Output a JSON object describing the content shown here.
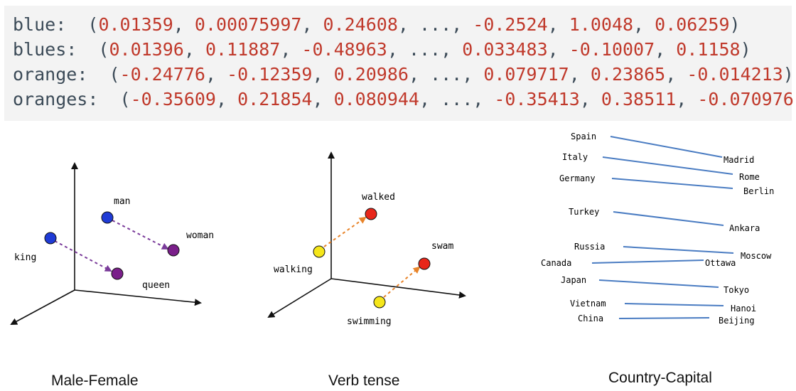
{
  "embeddings": [
    {
      "word": "blue",
      "values": [
        "0.01359",
        "0.00075997",
        "0.24608",
        "...",
        "-0.2524",
        "1.0048",
        "0.06259"
      ]
    },
    {
      "word": "blues",
      "values": [
        "0.01396",
        "0.11887",
        "-0.48963",
        "...",
        "0.033483",
        "-0.10007",
        "0.1158"
      ]
    },
    {
      "word": "orange",
      "values": [
        "-0.24776",
        "-0.12359",
        "0.20986",
        "...",
        "0.079717",
        "0.23865",
        "-0.014213"
      ]
    },
    {
      "word": "oranges",
      "values": [
        "-0.35609",
        "0.21854",
        "0.080944",
        "...",
        "-0.35413",
        "0.38511",
        "-0.070976"
      ]
    }
  ],
  "panels": {
    "male_female": {
      "caption": "Male-Female",
      "labels": {
        "man": "man",
        "woman": "woman",
        "king": "king",
        "queen": "queen"
      },
      "colors": {
        "male": "#1f3bd6",
        "female": "#7a1f8a",
        "arrow": "#7a3b9a"
      }
    },
    "verb_tense": {
      "caption": "Verb tense",
      "labels": {
        "walked": "walked",
        "walking": "walking",
        "swam": "swam",
        "swimming": "swimming"
      },
      "colors": {
        "present": "#f5e61a",
        "past": "#e8261a",
        "arrow": "#e8842a"
      }
    },
    "country_capital": {
      "caption": "Country-Capital",
      "pairs": [
        {
          "country": "Spain",
          "capital": "Madrid"
        },
        {
          "country": "Italy",
          "capital": "Rome"
        },
        {
          "country": "Germany",
          "capital": "Berlin"
        },
        {
          "country": "Turkey",
          "capital": "Ankara"
        },
        {
          "country": "Russia",
          "capital": "Moscow"
        },
        {
          "country": "Canada",
          "capital": "Ottawa"
        },
        {
          "country": "Japan",
          "capital": "Tokyo"
        },
        {
          "country": "Vietnam",
          "capital": "Hanoi"
        },
        {
          "country": "China",
          "capital": "Beijing"
        }
      ],
      "line_color": "#4a7cc2"
    }
  }
}
